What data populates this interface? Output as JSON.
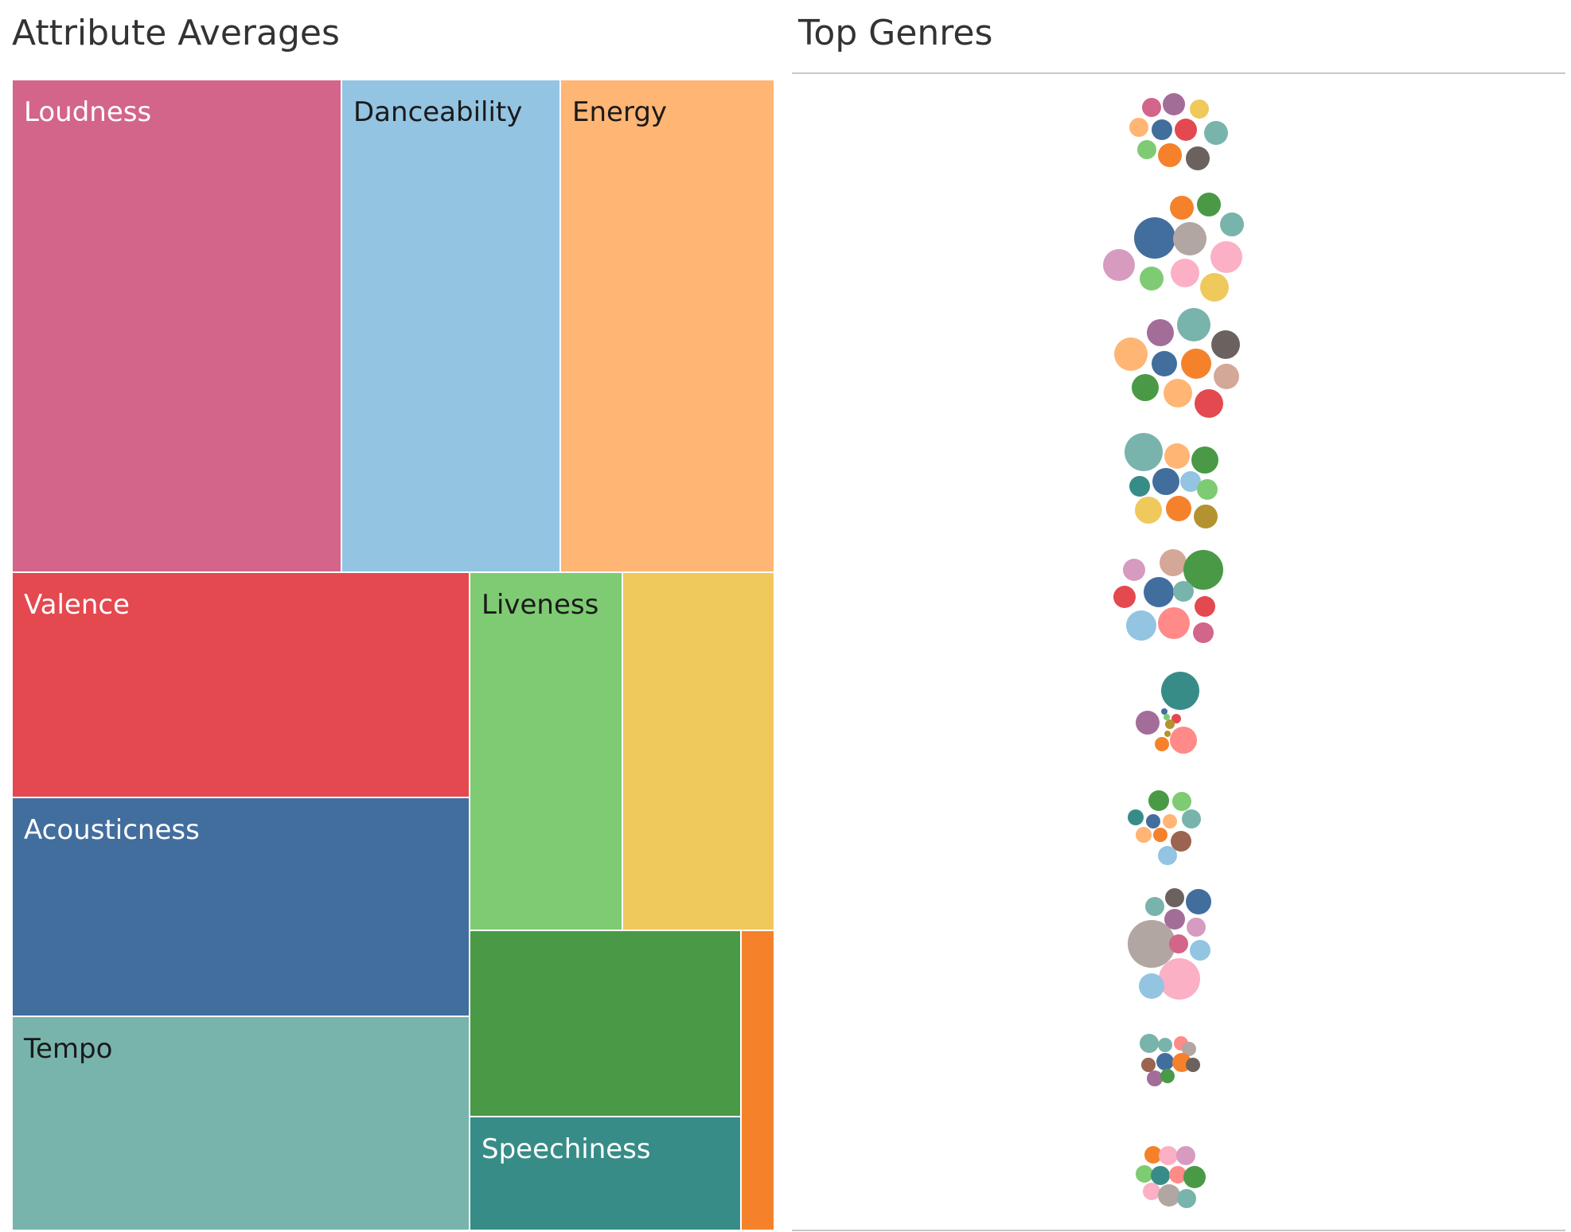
{
  "chart_data": [
    {
      "type": "treemap",
      "title": "Attribute Averages",
      "tiles": [
        {
          "name": "Loudness",
          "label": "Loudness",
          "color": "#d3648a",
          "label_color": "#ffffff"
        },
        {
          "name": "Danceability",
          "label": "Danceability",
          "color": "#93c4e2",
          "label_color": "#1a1a1a"
        },
        {
          "name": "Energy",
          "label": "Energy",
          "color": "#ffb574",
          "label_color": "#1a1a1a"
        },
        {
          "name": "Valence",
          "label": "Valence",
          "color": "#e3494f",
          "label_color": "#ffffff"
        },
        {
          "name": "Acousticness",
          "label": "Acousticness",
          "color": "#426e9e",
          "label_color": "#ffffff"
        },
        {
          "name": "Tempo",
          "label": "Tempo",
          "color": "#78b4ab",
          "label_color": "#1a1a1a"
        },
        {
          "name": "Liveness",
          "label": "Liveness",
          "color": "#7fcb73",
          "label_color": "#1a1a1a"
        },
        {
          "name": "",
          "label": "",
          "color": "#f0c95c",
          "label_color": "#1a1a1a"
        },
        {
          "name": "",
          "label": "",
          "color": "#4a9946",
          "label_color": "#ffffff"
        },
        {
          "name": "Speechiness",
          "label": "Speechiness",
          "color": "#388c87",
          "label_color": "#ffffff"
        },
        {
          "name": "",
          "label": "",
          "color": "#f5822b",
          "label_color": "#ffffff"
        }
      ]
    },
    {
      "type": "packed-bubble",
      "title": "Top Genres",
      "groups": [
        {
          "bubbles": [
            {
              "color": "#d3648a",
              "size": 12
            },
            {
              "color": "#a36d9a",
              "size": 14
            },
            {
              "color": "#f0c95c",
              "size": 12
            },
            {
              "color": "#ffb574",
              "size": 12
            },
            {
              "color": "#426e9e",
              "size": 13
            },
            {
              "color": "#e3494f",
              "size": 14
            },
            {
              "color": "#78b4ab",
              "size": 15
            },
            {
              "color": "#7fcb73",
              "size": 12
            },
            {
              "color": "#f5822b",
              "size": 15
            },
            {
              "color": "#6b625f",
              "size": 15
            }
          ]
        },
        {
          "bubbles": [
            {
              "color": "#f5822b",
              "size": 15
            },
            {
              "color": "#4a9946",
              "size": 15
            },
            {
              "color": "#78b4ab",
              "size": 15
            },
            {
              "color": "#426e9e",
              "size": 26
            },
            {
              "color": "#b2a6a3",
              "size": 21
            },
            {
              "color": "#d69bbf",
              "size": 20
            },
            {
              "color": "#fbb0c5",
              "size": 20
            },
            {
              "color": "#7fcb73",
              "size": 15
            },
            {
              "color": "#fbb0c5",
              "size": 18
            },
            {
              "color": "#f0c95c",
              "size": 18
            }
          ]
        },
        {
          "bubbles": [
            {
              "color": "#a36d9a",
              "size": 17
            },
            {
              "color": "#78b4ab",
              "size": 21
            },
            {
              "color": "#ffb574",
              "size": 21
            },
            {
              "color": "#6b625f",
              "size": 18
            },
            {
              "color": "#426e9e",
              "size": 16
            },
            {
              "color": "#f5822b",
              "size": 19
            },
            {
              "color": "#d3a899",
              "size": 16
            },
            {
              "color": "#4a9946",
              "size": 17
            },
            {
              "color": "#ffb574",
              "size": 18
            },
            {
              "color": "#e3494f",
              "size": 18
            }
          ]
        },
        {
          "bubbles": [
            {
              "color": "#78b4ab",
              "size": 24
            },
            {
              "color": "#ffb574",
              "size": 16
            },
            {
              "color": "#4a9946",
              "size": 17
            },
            {
              "color": "#388c87",
              "size": 13
            },
            {
              "color": "#426e9e",
              "size": 17
            },
            {
              "color": "#93c4e2",
              "size": 13
            },
            {
              "color": "#7fcb73",
              "size": 13
            },
            {
              "color": "#f0c95c",
              "size": 17
            },
            {
              "color": "#f5822b",
              "size": 16
            },
            {
              "color": "#b39230",
              "size": 15
            }
          ]
        },
        {
          "bubbles": [
            {
              "color": "#d69bbf",
              "size": 14
            },
            {
              "color": "#d3a899",
              "size": 17
            },
            {
              "color": "#4a9946",
              "size": 25
            },
            {
              "color": "#e3494f",
              "size": 14
            },
            {
              "color": "#426e9e",
              "size": 19
            },
            {
              "color": "#78b4ab",
              "size": 13
            },
            {
              "color": "#e3494f",
              "size": 13
            },
            {
              "color": "#93c4e2",
              "size": 19
            },
            {
              "color": "#ff8a88",
              "size": 20
            },
            {
              "color": "#d3648a",
              "size": 13
            }
          ]
        },
        {
          "bubbles": [
            {
              "color": "#388c87",
              "size": 24
            },
            {
              "color": "#426e9e",
              "size": 4
            },
            {
              "color": "#7fcb73",
              "size": 4
            },
            {
              "color": "#e3494f",
              "size": 6
            },
            {
              "color": "#a36d9a",
              "size": 15
            },
            {
              "color": "#b39230",
              "size": 6
            },
            {
              "color": "#b39230",
              "size": 4
            },
            {
              "color": "#f5822b",
              "size": 9
            },
            {
              "color": "#ff8a88",
              "size": 17
            }
          ]
        },
        {
          "bubbles": [
            {
              "color": "#4a9946",
              "size": 13
            },
            {
              "color": "#7fcb73",
              "size": 12
            },
            {
              "color": "#388c87",
              "size": 10
            },
            {
              "color": "#426e9e",
              "size": 9
            },
            {
              "color": "#ffb574",
              "size": 9
            },
            {
              "color": "#78b4ab",
              "size": 12
            },
            {
              "color": "#ffb574",
              "size": 10
            },
            {
              "color": "#f5822b",
              "size": 9
            },
            {
              "color": "#9b6450",
              "size": 13
            },
            {
              "color": "#93c4e2",
              "size": 12
            }
          ]
        },
        {
          "bubbles": [
            {
              "color": "#6b625f",
              "size": 12
            },
            {
              "color": "#426e9e",
              "size": 16
            },
            {
              "color": "#78b4ab",
              "size": 12
            },
            {
              "color": "#a36d9a",
              "size": 13
            },
            {
              "color": "#d69bbf",
              "size": 12
            },
            {
              "color": "#b2a6a3",
              "size": 30
            },
            {
              "color": "#d3648a",
              "size": 12
            },
            {
              "color": "#93c4e2",
              "size": 13
            },
            {
              "color": "#fbb0c5",
              "size": 26
            },
            {
              "color": "#93c4e2",
              "size": 16
            }
          ]
        },
        {
          "bubbles": [
            {
              "color": "#78b4ab",
              "size": 12
            },
            {
              "color": "#78b4ab",
              "size": 9
            },
            {
              "color": "#ff8a88",
              "size": 9
            },
            {
              "color": "#b2a6a3",
              "size": 9
            },
            {
              "color": "#9b6450",
              "size": 9
            },
            {
              "color": "#426e9e",
              "size": 11
            },
            {
              "color": "#f5822b",
              "size": 12
            },
            {
              "color": "#6b625f",
              "size": 9
            },
            {
              "color": "#a36d9a",
              "size": 10
            },
            {
              "color": "#4a9946",
              "size": 9
            }
          ]
        },
        {
          "bubbles": [
            {
              "color": "#f5822b",
              "size": 11
            },
            {
              "color": "#fbb0c5",
              "size": 12
            },
            {
              "color": "#d69bbf",
              "size": 12
            },
            {
              "color": "#7fcb73",
              "size": 11
            },
            {
              "color": "#388c87",
              "size": 12
            },
            {
              "color": "#ff8a88",
              "size": 11
            },
            {
              "color": "#4a9946",
              "size": 14
            },
            {
              "color": "#fbb0c5",
              "size": 11
            },
            {
              "color": "#b2a6a3",
              "size": 14
            },
            {
              "color": "#78b4ab",
              "size": 12
            }
          ]
        }
      ]
    }
  ]
}
